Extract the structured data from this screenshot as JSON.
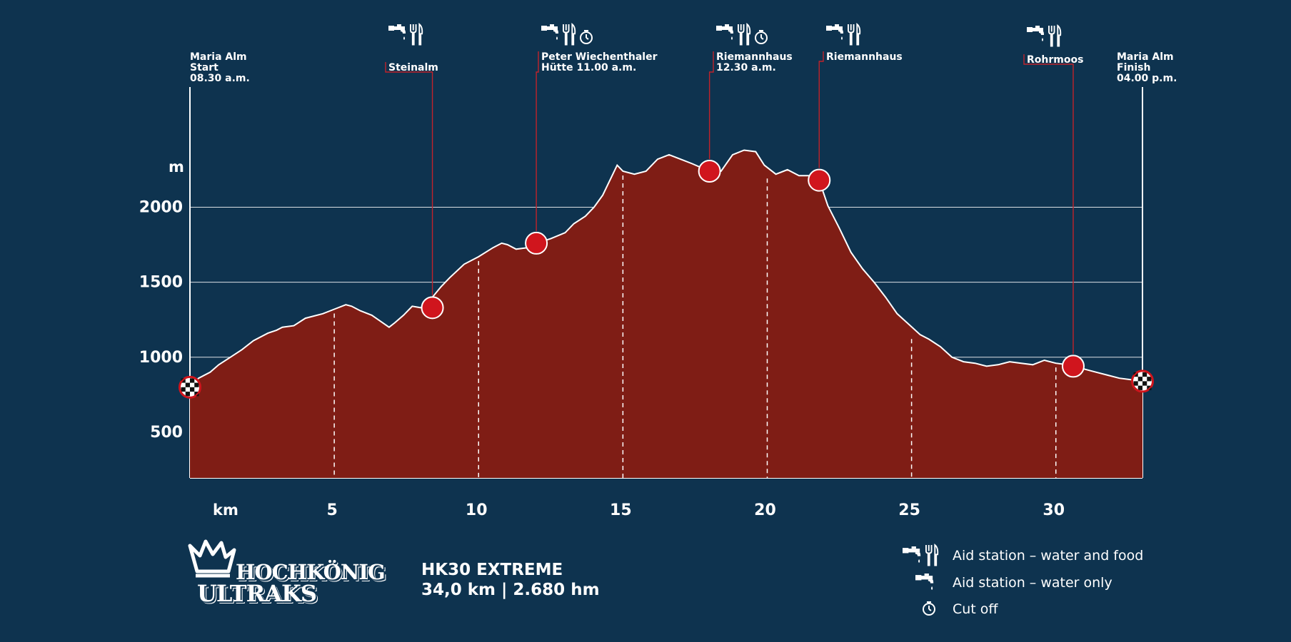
{
  "chart_data": {
    "type": "area",
    "title": "",
    "xlabel": "km",
    "ylabel": "m",
    "xlim": [
      0,
      33
    ],
    "ylim": [
      200,
      2700
    ],
    "x_ticks": [
      5,
      10,
      15,
      20,
      25,
      30
    ],
    "y_ticks": [
      500,
      1000,
      1500,
      2000
    ],
    "grid": "horizontal",
    "fill_color": "#7f1d15",
    "line_color": "#ffffff",
    "marker_color": "#d0151d",
    "series": [
      {
        "x": [
          0,
          0.3,
          0.7,
          1,
          1.4,
          1.8,
          2.2,
          2.7,
          3,
          3.2,
          3.6,
          4,
          4.2,
          4.6,
          5,
          5.4,
          5.6,
          5.9,
          6.3,
          6.6,
          6.9,
          7.1,
          7.4,
          7.7,
          8,
          8.4,
          8.7,
          9,
          9.5,
          10,
          10.5,
          10.8,
          11,
          11.3,
          11.7,
          12,
          12.5,
          13,
          13.3,
          13.7,
          14,
          14.3,
          14.6,
          14.8,
          15,
          15.4,
          15.8,
          16.2,
          16.6,
          17,
          17.4,
          18,
          18.4,
          18.8,
          19.2,
          19.6,
          19.9,
          20.3,
          20.7,
          21.1,
          21.5,
          21.8,
          22.1,
          22.5,
          22.9,
          23.3,
          23.7,
          24.1,
          24.5,
          24.9,
          25.3,
          25.6,
          26,
          26.4,
          26.8,
          27.2,
          27.6,
          28,
          28.4,
          28.8,
          29.2,
          29.6,
          30,
          30.4,
          30.7,
          31,
          31.4,
          31.8,
          32.2,
          32.6,
          33
        ],
        "y": [
          800,
          860,
          900,
          950,
          1000,
          1050,
          1110,
          1160,
          1180,
          1200,
          1210,
          1260,
          1270,
          1290,
          1320,
          1350,
          1340,
          1310,
          1280,
          1240,
          1200,
          1230,
          1280,
          1340,
          1330,
          1400,
          1470,
          1530,
          1620,
          1670,
          1730,
          1760,
          1750,
          1720,
          1730,
          1760,
          1790,
          1830,
          1890,
          1940,
          2000,
          2080,
          2200,
          2280,
          2240,
          2220,
          2240,
          2320,
          2350,
          2320,
          2290,
          2240,
          2240,
          2350,
          2380,
          2370,
          2280,
          2220,
          2250,
          2210,
          2210,
          2180,
          2010,
          1860,
          1700,
          1590,
          1500,
          1400,
          1290,
          1220,
          1150,
          1120,
          1070,
          1000,
          970,
          960,
          940,
          950,
          970,
          960,
          950,
          980,
          960,
          950,
          940,
          920,
          900,
          880,
          860,
          850,
          840
        ]
      }
    ],
    "aid_stations": [
      {
        "km": 8.4,
        "elev": 1330,
        "label": "Steinalm",
        "lines": [
          "Steinalm"
        ],
        "icons": [
          "tap",
          "food"
        ]
      },
      {
        "km": 12,
        "elev": 1760,
        "label": "Peter Wiechenthaler Hütte 11.00 a.m.",
        "lines": [
          "Peter Wiechenthaler",
          "Hütte 11.00 a.m."
        ],
        "icons": [
          "tap",
          "food",
          "clock"
        ]
      },
      {
        "km": 18,
        "elev": 2240,
        "label": "Riemannhaus 12.30 a.m.",
        "lines": [
          "Riemannhaus",
          "12.30 a.m."
        ],
        "icons": [
          "tap",
          "food",
          "clock"
        ]
      },
      {
        "km": 21.8,
        "elev": 2180,
        "label": "Riemannhaus",
        "lines": [
          "Riemannhaus"
        ],
        "icons": [
          "tap",
          "food"
        ]
      },
      {
        "km": 30.6,
        "elev": 940,
        "label": "Rohrmoos",
        "lines": [
          "Rohrmoos"
        ],
        "icons": [
          "tap",
          "food"
        ]
      }
    ],
    "start": {
      "km": 0,
      "elev": 800,
      "lines": [
        "Maria Alm",
        "Start",
        "08.30 a.m."
      ]
    },
    "finish": {
      "km": 33,
      "elev": 840,
      "lines": [
        "Maria Alm",
        "Finish",
        "04.00 p.m."
      ]
    }
  },
  "race": {
    "name": "HK30 EXTREME",
    "stats": "34,0 km | 2.680 hm"
  },
  "logo": {
    "line1": "HOCHKÖNIG",
    "line2": "ULTRAKS"
  },
  "legend": [
    {
      "icons": [
        "tap",
        "food"
      ],
      "label": "Aid station – water and food"
    },
    {
      "icons": [
        "tap"
      ],
      "label": "Aid station – water only"
    },
    {
      "icons": [
        "clock"
      ],
      "label": "Cut off"
    }
  ]
}
